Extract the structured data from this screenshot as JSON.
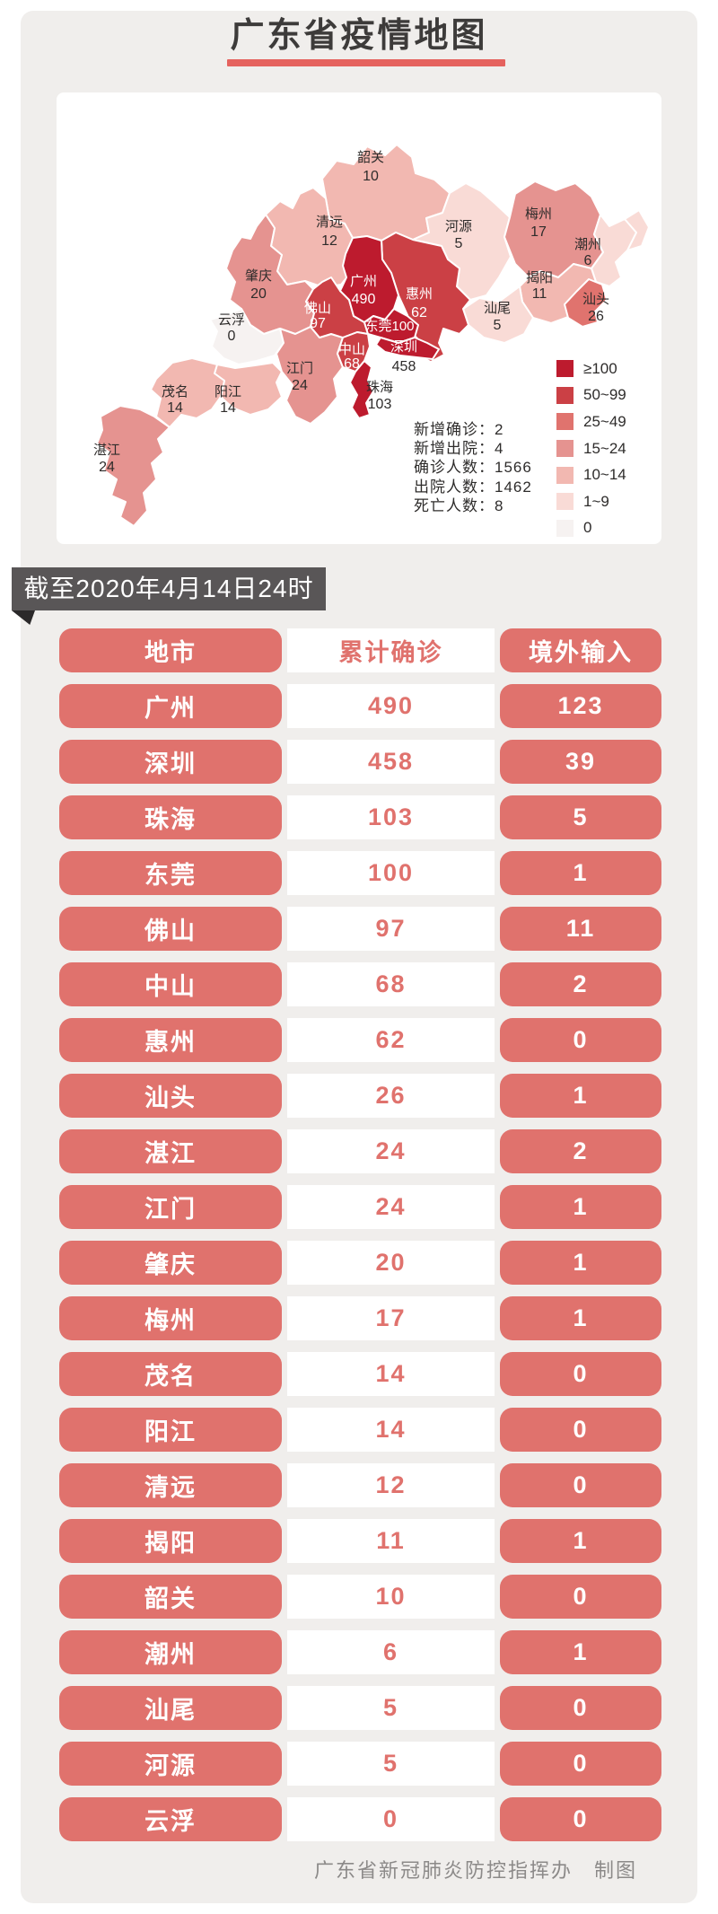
{
  "header": {
    "title": "广东省疫情地图"
  },
  "date_banner": {
    "text": "截至2020年4月14日24时"
  },
  "footer": {
    "credit": "广东省新冠肺炎防控指挥办　制图"
  },
  "colors": {
    "accent_red": "#e0726d",
    "title_underline": "#e5625e",
    "ribbon_bg": "#595657",
    "panel_bg": "#f0eeec"
  },
  "map": {
    "legend": [
      {
        "label": "≥100",
        "color": "#bd1b2e"
      },
      {
        "label": "50~99",
        "color": "#cb4045"
      },
      {
        "label": "25~49",
        "color": "#e0736e"
      },
      {
        "label": "15~24",
        "color": "#e59390"
      },
      {
        "label": "10~14",
        "color": "#f2b8b1"
      },
      {
        "label": "1~9",
        "color": "#f9dbd6"
      },
      {
        "label": "0",
        "color": "#f6f2f1"
      }
    ],
    "stats": [
      {
        "label": "新增确诊",
        "value": "2"
      },
      {
        "label": "新增出院",
        "value": "4"
      },
      {
        "label": "确诊人数",
        "value": "1566"
      },
      {
        "label": "出院人数",
        "value": "1462"
      },
      {
        "label": "死亡人数",
        "value": "8"
      }
    ],
    "cities": [
      {
        "name": "韶关",
        "value": "10",
        "tier": 4,
        "name_color": "dark",
        "value_color": "dark"
      },
      {
        "name": "清远",
        "value": "12",
        "tier": 4,
        "name_color": "dark",
        "value_color": "dark"
      },
      {
        "name": "河源",
        "value": "5",
        "tier": 5,
        "name_color": "dark",
        "value_color": "dark"
      },
      {
        "name": "梅州",
        "value": "17",
        "tier": 3,
        "name_color": "dark",
        "value_color": "dark"
      },
      {
        "name": "潮州",
        "value": "6",
        "tier": 5,
        "name_color": "dark",
        "value_color": "dark"
      },
      {
        "name": "揭阳",
        "value": "11",
        "tier": 4,
        "name_color": "dark",
        "value_color": "dark"
      },
      {
        "name": "汕头",
        "value": "26",
        "tier": 2,
        "name_color": "dark",
        "value_color": "dark"
      },
      {
        "name": "汕尾",
        "value": "5",
        "tier": 5,
        "name_color": "dark",
        "value_color": "dark"
      },
      {
        "name": "惠州",
        "value": "62",
        "tier": 1,
        "name_color": "light",
        "value_color": "light"
      },
      {
        "name": "肇庆",
        "value": "20",
        "tier": 3,
        "name_color": "dark",
        "value_color": "dark"
      },
      {
        "name": "云浮",
        "value": "0",
        "tier": 6,
        "name_color": "dark",
        "value_color": "dark"
      },
      {
        "name": "阳江",
        "value": "14",
        "tier": 4,
        "name_color": "dark",
        "value_color": "dark"
      },
      {
        "name": "茂名",
        "value": "14",
        "tier": 4,
        "name_color": "dark",
        "value_color": "dark"
      },
      {
        "name": "湛江",
        "value": "24",
        "tier": 3,
        "name_color": "dark",
        "value_color": "dark"
      },
      {
        "name": "江门",
        "value": "24",
        "tier": 3,
        "name_color": "dark",
        "value_color": "dark"
      },
      {
        "name": "佛山",
        "value": "97",
        "tier": 1,
        "name_color": "light",
        "value_color": "light"
      },
      {
        "name": "广州",
        "value": "490",
        "tier": 0,
        "name_color": "light",
        "value_color": "light"
      },
      {
        "name": "东莞",
        "value": "100",
        "tier": 0,
        "name_color": "light",
        "value_color": "light"
      },
      {
        "name": "中山",
        "value": "68",
        "tier": 1,
        "name_color": "light",
        "value_color": "light"
      },
      {
        "name": "深圳",
        "value": "458",
        "tier": 0,
        "name_color": "light",
        "value_color": "dark"
      },
      {
        "name": "珠海",
        "value": "103",
        "tier": 0,
        "name_color": "dark",
        "value_color": "dark"
      }
    ]
  },
  "table": {
    "headers": [
      "地市",
      "累计确诊",
      "境外输入"
    ],
    "rows": [
      [
        "广州",
        "490",
        "123"
      ],
      [
        "深圳",
        "458",
        "39"
      ],
      [
        "珠海",
        "103",
        "5"
      ],
      [
        "东莞",
        "100",
        "1"
      ],
      [
        "佛山",
        "97",
        "11"
      ],
      [
        "中山",
        "68",
        "2"
      ],
      [
        "惠州",
        "62",
        "0"
      ],
      [
        "汕头",
        "26",
        "1"
      ],
      [
        "湛江",
        "24",
        "2"
      ],
      [
        "江门",
        "24",
        "1"
      ],
      [
        "肇庆",
        "20",
        "1"
      ],
      [
        "梅州",
        "17",
        "1"
      ],
      [
        "茂名",
        "14",
        "0"
      ],
      [
        "阳江",
        "14",
        "0"
      ],
      [
        "清远",
        "12",
        "0"
      ],
      [
        "揭阳",
        "11",
        "1"
      ],
      [
        "韶关",
        "10",
        "0"
      ],
      [
        "潮州",
        "6",
        "1"
      ],
      [
        "汕尾",
        "5",
        "0"
      ],
      [
        "河源",
        "5",
        "0"
      ],
      [
        "云浮",
        "0",
        "0"
      ]
    ]
  }
}
